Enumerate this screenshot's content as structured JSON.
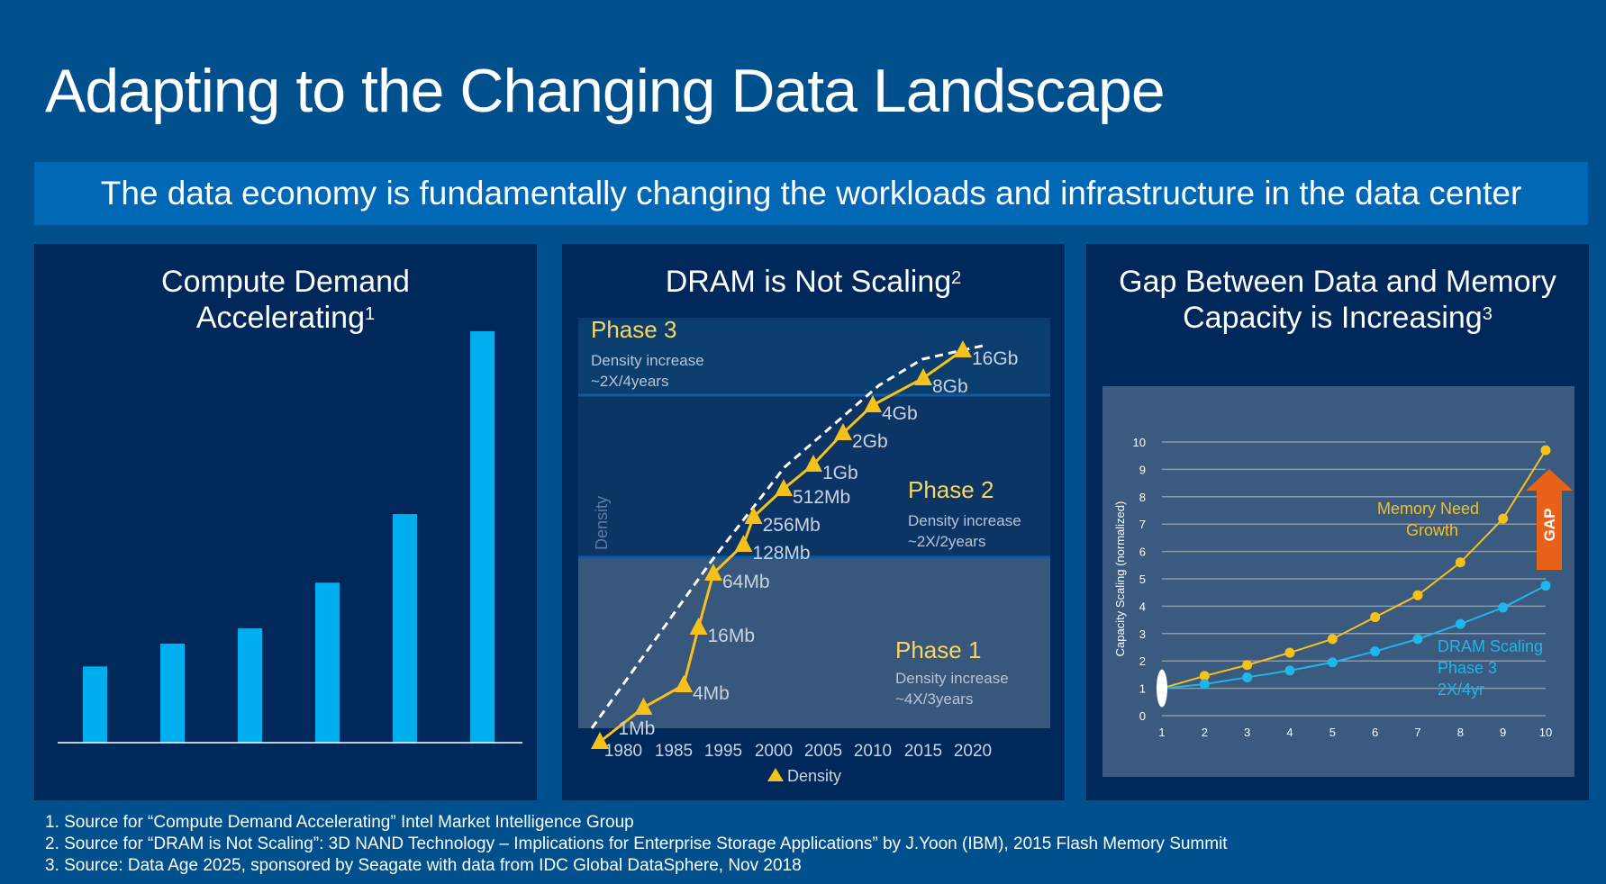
{
  "title": "Adapting to the Changing Data Landscape",
  "banner": "The data economy is fundamentally changing the workloads and infrastructure in the data center",
  "panels": {
    "compute": {
      "title_line1": "Compute Demand",
      "title_line2": "Accelerating",
      "sup": "1"
    },
    "dram": {
      "title": "DRAM is Not Scaling",
      "sup": "2"
    },
    "gap": {
      "title_line1": "Gap Between Data and Memory",
      "title_line2": "Capacity is Increasing",
      "sup": "3"
    }
  },
  "footnotes": [
    "1. Source for “Compute Demand Accelerating” Intel Market Intelligence Group",
    "2. Source for “DRAM is Not Scaling”: 3D NAND Technology – Implications for Enterprise Storage Applications” by J.Yoon (IBM), 2015 Flash Memory Summit",
    "3. Source: Data Age 2025, sponsored by Seagate with data from IDC Global DataSphere, Nov 2018"
  ],
  "colors": {
    "bar": "#00aeef",
    "yellow": "#f7c11b",
    "phase_yellow": "#f9d75a",
    "blue_series": "#1fb6ea",
    "gap_arrow": "#e8621a"
  },
  "chart_data": [
    {
      "type": "bar",
      "title": "Compute Demand Accelerating",
      "categories": [
        "",
        "",
        "",
        "",
        "",
        ""
      ],
      "values": [
        1.0,
        1.3,
        1.5,
        2.1,
        3.0,
        5.4
      ],
      "ylim": [
        0,
        5.6
      ]
    },
    {
      "type": "line",
      "title": "DRAM is Not Scaling",
      "ylabel": "Density",
      "x_ticks": [
        "1980",
        "1985",
        "1995",
        "2000",
        "2005",
        "2010",
        "2015",
        "2020"
      ],
      "legend": "Density",
      "series": [
        {
          "name": "Density",
          "points": [
            {
              "x": 1978,
              "y": 0,
              "label": ""
            },
            {
              "x": 1982,
              "y": 1,
              "label": "1Mb"
            },
            {
              "x": 1987,
              "y": 2,
              "label": "4Mb"
            },
            {
              "x": 1990,
              "y": 3,
              "label": "16Mb"
            },
            {
              "x": 1993,
              "y": 4,
              "label": "64Mb"
            },
            {
              "x": 1997,
              "y": 5,
              "label": "128Mb"
            },
            {
              "x": 1998,
              "y": 6,
              "label": "256Mb"
            },
            {
              "x": 2001,
              "y": 7,
              "label": "512Mb"
            },
            {
              "x": 2004,
              "y": 8,
              "label": "1Gb"
            },
            {
              "x": 2007,
              "y": 9,
              "label": "2Gb"
            },
            {
              "x": 2010,
              "y": 10,
              "label": "4Gb"
            },
            {
              "x": 2015,
              "y": 11,
              "label": "8Gb"
            },
            {
              "x": 2019,
              "y": 12,
              "label": "16Gb"
            }
          ]
        }
      ],
      "trend": "dashed",
      "phases": [
        {
          "name": "Phase 3",
          "line1": "Density increase",
          "line2": "~2X/4years"
        },
        {
          "name": "Phase 2",
          "line1": "Density increase",
          "line2": "~2X/2years"
        },
        {
          "name": "Phase 1",
          "line1": "Density increase",
          "line2": "~4X/3years"
        }
      ]
    },
    {
      "type": "line",
      "title": "Gap Between Data and Memory Capacity is Increasing",
      "ylabel": "Capacity Scaling (normalized)",
      "x": [
        1,
        2,
        3,
        4,
        5,
        6,
        7,
        8,
        9,
        10
      ],
      "ylim": [
        0,
        10
      ],
      "yticks": [
        0,
        1,
        2,
        3,
        4,
        5,
        6,
        7,
        8,
        9,
        10
      ],
      "grid": true,
      "series": [
        {
          "name": "Memory Need Growth",
          "values": [
            1.0,
            1.45,
            1.85,
            2.3,
            2.8,
            3.6,
            4.4,
            5.6,
            7.2,
            9.7
          ]
        },
        {
          "name": "DRAM Scaling Phase 3 2X/4yr",
          "values": [
            1.0,
            1.15,
            1.4,
            1.65,
            1.95,
            2.35,
            2.8,
            3.35,
            3.95,
            4.75
          ]
        }
      ],
      "annotations": {
        "memory_label1": "Memory Need",
        "memory_label2": "Growth",
        "dram_label1": "DRAM Scaling",
        "dram_label2": "Phase 3",
        "dram_label3": "2X/4yr",
        "gap": "GAP"
      }
    }
  ]
}
